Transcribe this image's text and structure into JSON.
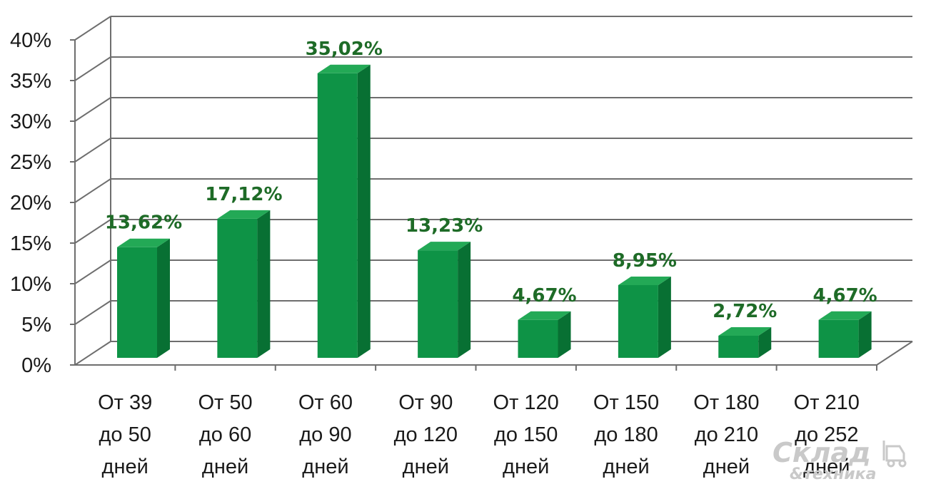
{
  "chart_data": {
    "type": "bar",
    "categories": [
      [
        "От 39",
        "до 50",
        "дней"
      ],
      [
        "От 50",
        "до 60",
        "дней"
      ],
      [
        "От 60",
        "до 90",
        "дней"
      ],
      [
        "От 90",
        "до 120",
        "дней"
      ],
      [
        "От 120",
        "до 150",
        "дней"
      ],
      [
        "От 150",
        "до 180",
        "дней"
      ],
      [
        "От 180",
        "до 210",
        "дней"
      ],
      [
        "От 210",
        "до 252",
        "дней"
      ]
    ],
    "values": [
      13.62,
      17.12,
      35.02,
      13.23,
      4.67,
      8.95,
      2.72,
      4.67
    ],
    "data_labels": [
      "13,62%",
      "17,12%",
      "35,02%",
      "13,23%",
      "4,67%",
      "8,95%",
      "2,72%",
      "4,67%"
    ],
    "y_ticks": [
      "0%",
      "5%",
      "10%",
      "15%",
      "20%",
      "25%",
      "30%",
      "35%",
      "40%"
    ],
    "ylim": [
      0,
      40
    ],
    "title": "",
    "xlabel": "",
    "ylabel": "",
    "grid": true,
    "three_d": true,
    "legend": "none",
    "colors": {
      "bar_front": "#0e9346",
      "bar_side": "#087033",
      "bar_top": "#23a956",
      "data_label": "#1e6b27",
      "grid": "#6e6e6e"
    }
  },
  "watermark": {
    "line1": "Склад",
    "line2": "&техника"
  }
}
